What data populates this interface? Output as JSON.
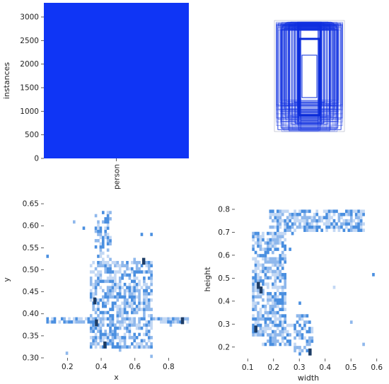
{
  "chart_data": [
    {
      "type": "bar",
      "categories": [
        "person"
      ],
      "values": [
        3300
      ],
      "ylabel": "instances",
      "xlabel": "",
      "ylim": [
        0,
        3300
      ],
      "yticks": [
        0,
        500,
        1000,
        1500,
        2000,
        2500,
        3000
      ],
      "color": "#0f35f5"
    },
    {
      "type": "box-overlay",
      "description_free": true,
      "color": "#1030e0"
    },
    {
      "type": "heatmap",
      "xlabel": "x",
      "ylabel": "y",
      "xlim": [
        0.06,
        0.92
      ],
      "ylim": [
        0.3,
        0.655
      ],
      "xticks": [
        0.2,
        0.4,
        0.6,
        0.8
      ],
      "yticks": [
        0.3,
        0.35,
        0.4,
        0.45,
        0.5,
        0.55,
        0.6,
        0.65
      ],
      "ytick_labels": [
        "0.30",
        "0.35",
        "0.40",
        "0.45",
        "0.50",
        "0.55",
        "0.60",
        "0.65"
      ],
      "xtick_labels": [
        "0.2",
        "0.4",
        "0.6",
        "0.8"
      ],
      "regions": [
        {
          "x": [
            0.08,
            0.92
          ],
          "y": [
            0.375,
            0.395
          ],
          "density": 0.6
        },
        {
          "x": [
            0.33,
            0.7
          ],
          "y": [
            0.32,
            0.52
          ],
          "density": 0.5
        },
        {
          "x": [
            0.36,
            0.46
          ],
          "y": [
            0.52,
            0.64
          ],
          "density": 0.35
        },
        {
          "x": [
            0.4,
            0.62
          ],
          "y": [
            0.48,
            0.52
          ],
          "density": 0.5
        }
      ],
      "hotspots": [
        {
          "x": 0.36,
          "y": 0.43
        },
        {
          "x": 0.42,
          "y": 0.33
        },
        {
          "x": 0.88,
          "y": 0.385
        },
        {
          "x": 0.65,
          "y": 0.52
        },
        {
          "x": 0.37,
          "y": 0.38
        }
      ]
    },
    {
      "type": "heatmap",
      "xlabel": "width",
      "ylabel": "height",
      "xlim": [
        0.05,
        0.62
      ],
      "ylim": [
        0.15,
        0.84
      ],
      "xticks": [
        0.1,
        0.2,
        0.3,
        0.4,
        0.5,
        0.6
      ],
      "yticks": [
        0.2,
        0.3,
        0.4,
        0.5,
        0.6,
        0.7,
        0.8
      ],
      "xtick_labels": [
        "0.1",
        "0.2",
        "0.3",
        "0.4",
        "0.5",
        "0.6"
      ],
      "ytick_labels": [
        "0.2",
        "0.3",
        "0.4",
        "0.5",
        "0.6",
        "0.7",
        "0.8"
      ],
      "regions": [
        {
          "x": [
            0.18,
            0.55
          ],
          "y": [
            0.7,
            0.8
          ],
          "density": 0.55
        },
        {
          "x": [
            0.12,
            0.25
          ],
          "y": [
            0.25,
            0.7
          ],
          "density": 0.55
        },
        {
          "x": [
            0.15,
            0.35
          ],
          "y": [
            0.2,
            0.3
          ],
          "density": 0.45
        },
        {
          "x": [
            0.28,
            0.34
          ],
          "y": [
            0.17,
            0.35
          ],
          "density": 0.4
        }
      ],
      "hotspots": [
        {
          "x": 0.14,
          "y": 0.47
        },
        {
          "x": 0.15,
          "y": 0.45
        },
        {
          "x": 0.13,
          "y": 0.28
        },
        {
          "x": 0.34,
          "y": 0.18
        }
      ]
    }
  ]
}
